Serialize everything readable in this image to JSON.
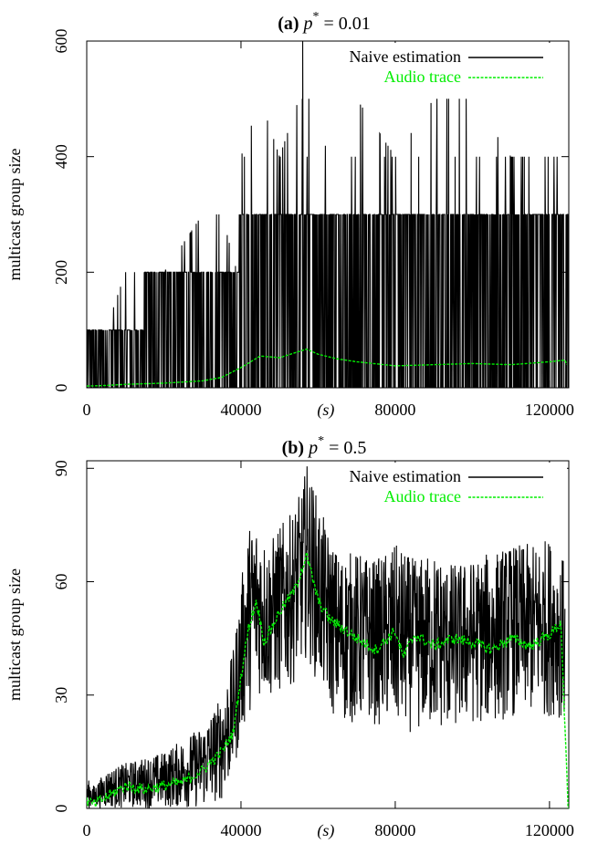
{
  "chart_data": [
    {
      "type": "line",
      "panel_label": "(a)",
      "title_symbol": "p",
      "title_superscript": "*",
      "title_value": "= 0.01",
      "ylabel": "multicast group size",
      "xunit": "(s)",
      "xlim": [
        0,
        125000
      ],
      "ylim": [
        0,
        600
      ],
      "xticks": [
        "0",
        "40000",
        "80000",
        "120000"
      ],
      "xtick_values": [
        0,
        40000,
        80000,
        120000
      ],
      "yticks": [
        "0",
        "200",
        "400",
        "600"
      ],
      "ytick_values": [
        0,
        200,
        400,
        600
      ],
      "legend_position": "top-right",
      "series": [
        {
          "name": "Naive estimation",
          "color": "#000000",
          "style": "solid",
          "x": [
            0,
            5000,
            10000,
            20000,
            30000,
            35000,
            39000,
            40000,
            45000,
            50000,
            55000,
            56000,
            60000,
            70000,
            80000,
            90000,
            100000,
            110000,
            120000,
            125000
          ],
          "low": [
            0,
            0,
            0,
            0,
            0,
            0,
            0,
            0,
            0,
            0,
            0,
            0,
            0,
            0,
            0,
            0,
            0,
            0,
            0,
            0
          ],
          "high": [
            100,
            100,
            200,
            200,
            300,
            300,
            200,
            400,
            500,
            400,
            500,
            600,
            400,
            500,
            400,
            500,
            500,
            400,
            400,
            400
          ],
          "typical_high": [
            100,
            100,
            100,
            200,
            200,
            200,
            200,
            300,
            300,
            300,
            300,
            300,
            300,
            300,
            300,
            300,
            300,
            300,
            300,
            300
          ]
        },
        {
          "name": "Audio trace",
          "color": "#00ee00",
          "style": "dashed",
          "x": [
            0,
            5000,
            10000,
            20000,
            30000,
            35000,
            40000,
            45000,
            50000,
            57000,
            60000,
            65000,
            70000,
            80000,
            90000,
            100000,
            110000,
            120000,
            124000,
            124500
          ],
          "y": [
            3,
            4,
            6,
            8,
            12,
            18,
            35,
            55,
            52,
            67,
            58,
            50,
            45,
            38,
            40,
            42,
            40,
            45,
            48,
            40
          ]
        }
      ]
    },
    {
      "type": "line",
      "panel_label": "(b)",
      "title_symbol": "p",
      "title_superscript": "*",
      "title_value": "= 0.5",
      "ylabel": "multicast group size",
      "xunit": "(s)",
      "xlim": [
        0,
        125000
      ],
      "ylim": [
        0,
        92
      ],
      "xticks": [
        "0",
        "40000",
        "80000",
        "120000"
      ],
      "xtick_values": [
        0,
        40000,
        80000,
        120000
      ],
      "yticks": [
        "0",
        "30",
        "60",
        "90"
      ],
      "ytick_values": [
        0,
        30,
        60,
        90
      ],
      "legend_position": "top-right",
      "series": [
        {
          "name": "Naive estimation",
          "color": "#000000",
          "style": "solid",
          "x": [
            0,
            2000,
            5000,
            10000,
            20000,
            30000,
            35000,
            38000,
            40000,
            42000,
            44000,
            47000,
            50000,
            53000,
            56000,
            57000,
            59000,
            62000,
            65000,
            70000,
            75000,
            80000,
            85000,
            90000,
            95000,
            100000,
            105000,
            110000,
            115000,
            120000,
            122000,
            124000
          ],
          "low": [
            0,
            0,
            0,
            0,
            0,
            0,
            2,
            8,
            18,
            25,
            30,
            28,
            30,
            32,
            38,
            40,
            35,
            28,
            22,
            22,
            22,
            20,
            20,
            20,
            20,
            22,
            22,
            24,
            24,
            24,
            25,
            20
          ],
          "high": [
            8,
            6,
            10,
            12,
            15,
            22,
            30,
            42,
            60,
            75,
            77,
            70,
            75,
            78,
            85,
            92,
            85,
            75,
            68,
            68,
            66,
            70,
            66,
            68,
            65,
            66,
            68,
            70,
            70,
            72,
            68,
            66
          ]
        },
        {
          "name": "Audio trace",
          "color": "#00ee00",
          "style": "dashed",
          "x": [
            0,
            2000,
            5000,
            10000,
            15000,
            20000,
            25000,
            30000,
            35000,
            38000,
            40000,
            42000,
            44000,
            46000,
            48000,
            50000,
            52000,
            54000,
            57000,
            58000,
            60000,
            63000,
            66000,
            70000,
            75000,
            80000,
            82000,
            85000,
            90000,
            95000,
            100000,
            105000,
            110000,
            115000,
            120000,
            123000,
            124800
          ],
          "y": [
            2,
            1,
            3,
            6,
            5,
            6,
            7,
            10,
            15,
            20,
            35,
            48,
            55,
            44,
            48,
            52,
            55,
            58,
            67,
            63,
            55,
            50,
            48,
            45,
            42,
            47,
            40,
            46,
            43,
            45,
            44,
            42,
            45,
            43,
            46,
            49,
            0
          ]
        }
      ]
    }
  ]
}
